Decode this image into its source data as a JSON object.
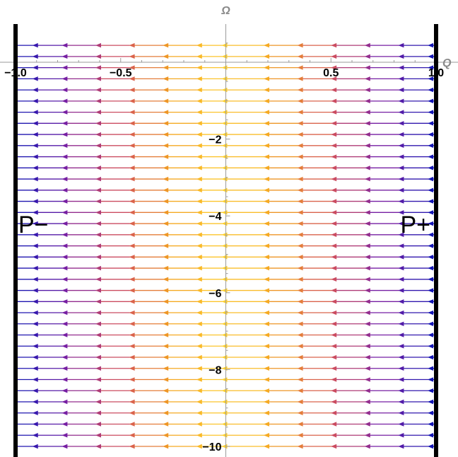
{
  "chart_data": {
    "type": "stream",
    "title": "",
    "xlabel": "Q",
    "ylabel": "Ω",
    "xlim": [
      -1.0,
      1.0
    ],
    "ylim": [
      -10.0,
      0.9
    ],
    "x_ticks": [
      {
        "value": -1.0,
        "label": "−1.0"
      },
      {
        "value": -0.5,
        "label": "−0.5"
      },
      {
        "value": 0.5,
        "label": "0.5"
      },
      {
        "value": 1.0,
        "label": "1.0"
      }
    ],
    "y_ticks": [
      {
        "value": -2,
        "label": "−2"
      },
      {
        "value": -4,
        "label": "−4"
      },
      {
        "value": -6,
        "label": "−6"
      },
      {
        "value": -8,
        "label": "−8"
      },
      {
        "value": -10,
        "label": "−10"
      }
    ],
    "flow_direction": "negative-Q",
    "stream_row_step": 0.29,
    "stream_row_start": -10.0,
    "stream_row_end": 0.55,
    "stream_arrow_x": [
      -0.9,
      -0.76,
      -0.6,
      -0.44,
      -0.28,
      -0.12,
      0.0,
      0.2,
      0.36,
      0.52,
      0.68,
      0.84,
      0.98
    ],
    "color_scale": [
      "#0a14b4",
      "#7a1fa2",
      "#d2505a",
      "#f2a020",
      "#ffd030"
    ],
    "boundaries": [
      -1.0,
      1.0
    ],
    "critical_points": [
      {
        "label": "P−",
        "Q": -1.0,
        "Omega": -4.0
      },
      {
        "label": "P+",
        "Q": 1.0,
        "Omega": -4.0
      }
    ],
    "grid": false,
    "legend": "none"
  }
}
